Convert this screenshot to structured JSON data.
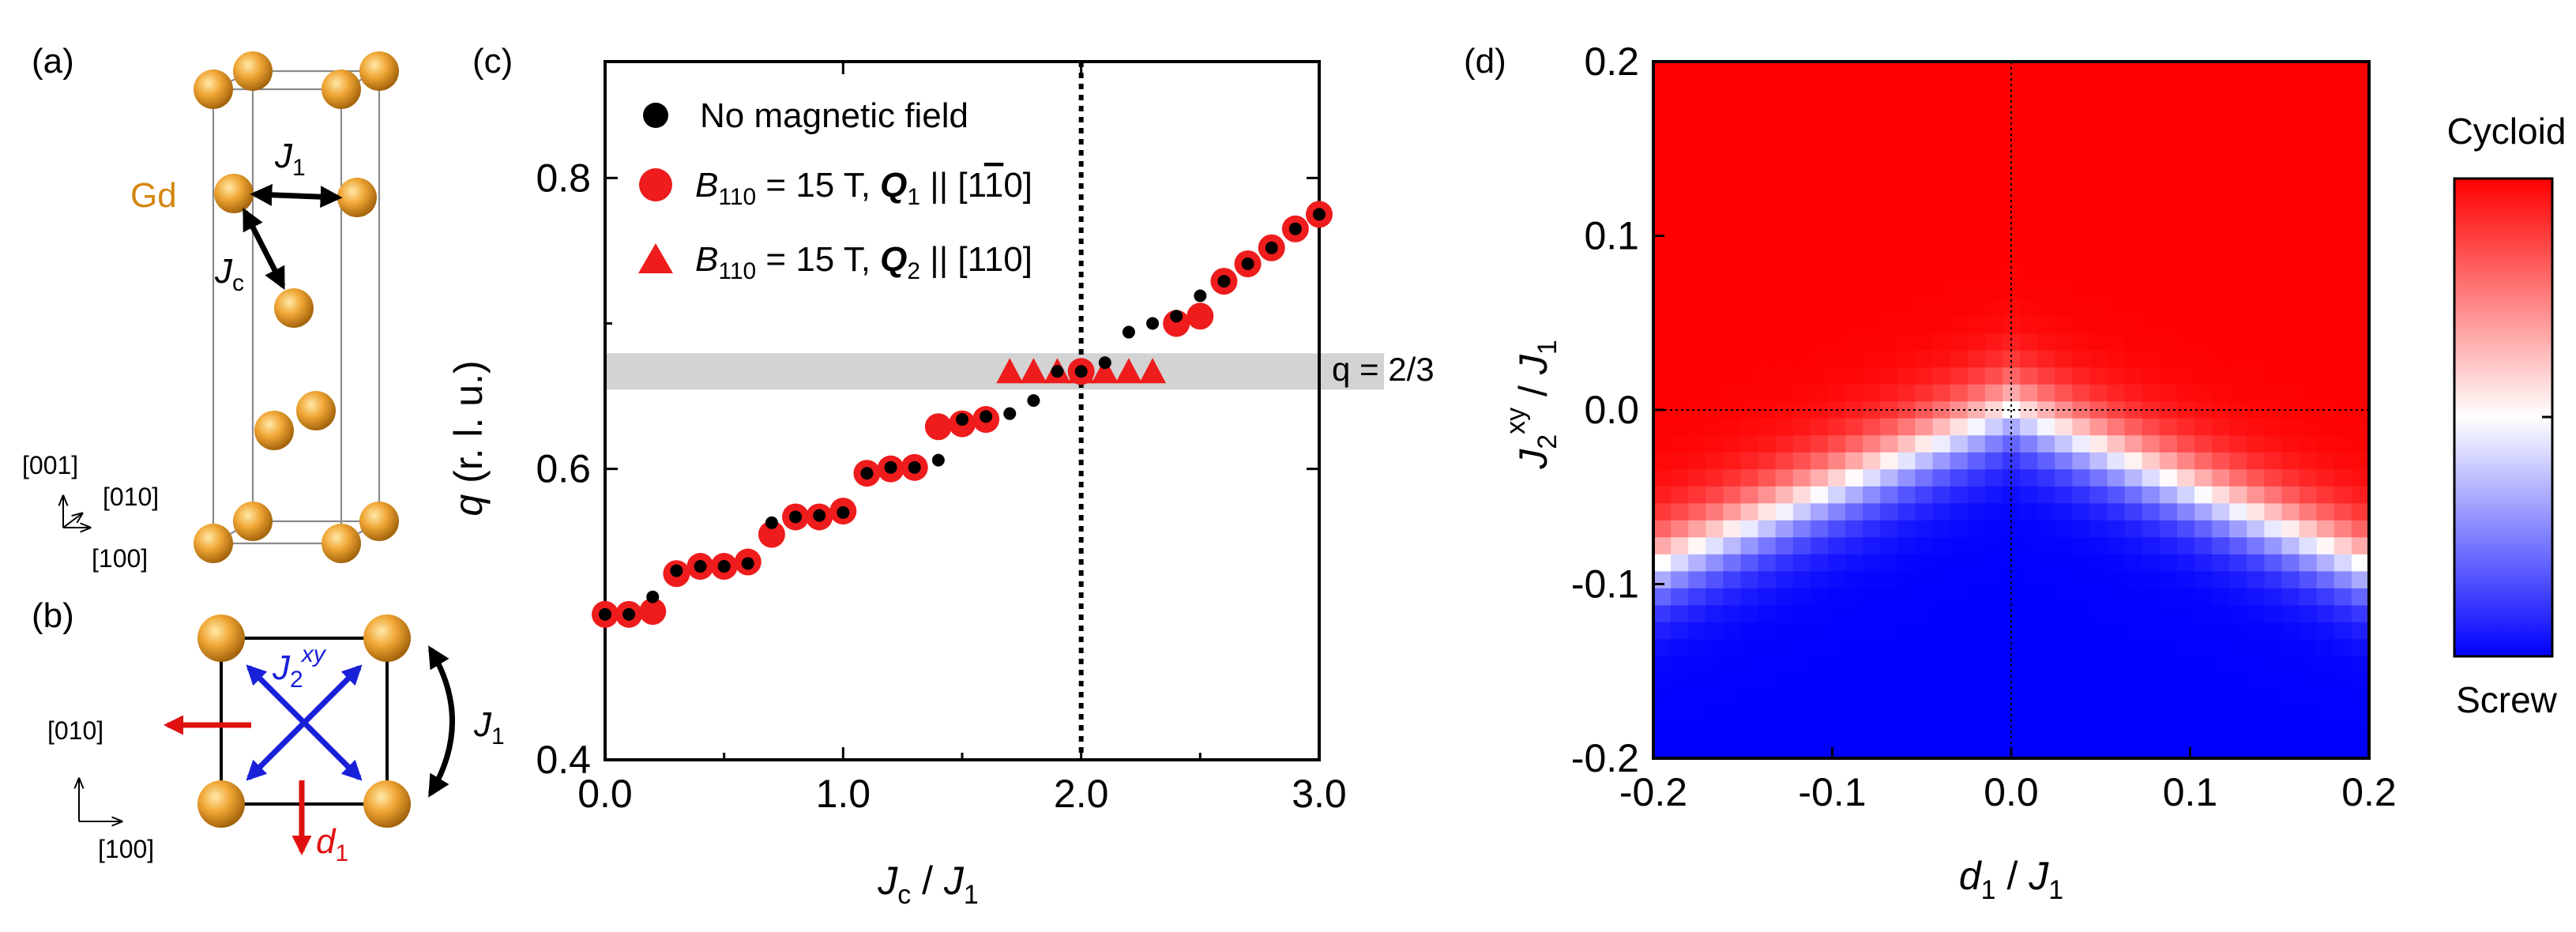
{
  "panel_labels": {
    "a": "(a)",
    "b": "(b)",
    "c": "(c)",
    "d": "(d)"
  },
  "panel_a": {
    "element": "Gd",
    "bond_j1": "J",
    "bond_j1_sub": "1",
    "bond_jc": "J",
    "bond_jc_sub": "c",
    "axis_001": "[001]",
    "axis_010": "[010]",
    "axis_100": "[100]"
  },
  "panel_b": {
    "j2": "J",
    "j2_sub": "2",
    "j2_sup": "xy",
    "j1": "J",
    "j1_sub": "1",
    "d1": "d",
    "d1_sub": "1",
    "axis_010": "[010]",
    "axis_100": "[100]"
  },
  "legend": {
    "items": [
      {
        "marker": "circle-black",
        "text": "No magnetic field"
      },
      {
        "marker": "circle-red",
        "pre": "B",
        "pre_sub": "110",
        "mid": " = 15 T, ",
        "q": "Q",
        "q_sub": "1",
        "post_a": " || [1",
        "overbar": "1",
        "post_b": "0]"
      },
      {
        "marker": "triangle-red",
        "pre": "B",
        "pre_sub": "110",
        "mid": " = 15 T, ",
        "q": "Q",
        "q_sub": "2",
        "post_a": " || [110]"
      }
    ]
  },
  "colors": {
    "gd_atom": "#d08a1c",
    "gd_atom_light": "#ffd27a",
    "gd_text": "#d4860e",
    "j2_blue": "#1a20d8",
    "d1_red": "#e01010",
    "marker_red": "#ee1c1c",
    "marker_black": "#000000",
    "band_gray": "#d3d3d3",
    "cmap_red": "#ff0000",
    "cmap_white": "#ffffff",
    "cmap_blue": "#0000ff"
  },
  "chart_data": [
    {
      "type": "scatter",
      "panel": "c",
      "xlabel": "J",
      "xlabel_sub": "c",
      "xlabel_div": " / ",
      "xlabel2": "J",
      "xlabel2_sub": "1",
      "ylabel": "q",
      "ylabel_rest": " (r. l. u.)",
      "xlim": [
        0.0,
        3.0
      ],
      "ylim": [
        0.4,
        0.88
      ],
      "xticks": [
        0.0,
        1.0,
        2.0,
        3.0
      ],
      "xtick_labels": [
        "0.0",
        "1.0",
        "2.0",
        "3.0"
      ],
      "yticks": [
        0.4,
        0.6,
        0.8
      ],
      "ytick_labels": [
        "0.4",
        "0.6",
        "0.8"
      ],
      "vline_x": 2.0,
      "band": {
        "y": 0.667,
        "label": "q = 2/3"
      },
      "series": [
        {
          "name": "No magnetic field",
          "x": [
            0.0,
            0.1,
            0.2,
            0.3,
            0.4,
            0.5,
            0.6,
            0.7,
            0.8,
            0.9,
            1.0,
            1.1,
            1.2,
            1.3,
            1.4,
            1.5,
            1.6,
            1.7,
            1.8,
            1.9,
            2.0,
            2.1,
            2.2,
            2.3,
            2.4,
            2.5,
            2.6,
            2.7,
            2.8,
            2.9,
            3.0
          ],
          "y": [
            0.5,
            0.5,
            0.512,
            0.53,
            0.533,
            0.533,
            0.535,
            0.563,
            0.567,
            0.568,
            0.57,
            0.597,
            0.601,
            0.601,
            0.606,
            0.634,
            0.636,
            0.638,
            0.647,
            0.667,
            0.667,
            0.673,
            0.694,
            0.7,
            0.705,
            0.719,
            0.729,
            0.741,
            0.752,
            0.765,
            0.775
          ]
        },
        {
          "name": "B110 = 15 T, Q1 || [1-10]",
          "x": [
            0.0,
            0.1,
            0.2,
            0.3,
            0.4,
            0.5,
            0.6,
            0.7,
            0.8,
            0.9,
            1.0,
            1.1,
            1.2,
            1.3,
            1.4,
            1.5,
            1.6,
            2.0,
            2.4,
            2.5,
            2.6,
            2.7,
            2.8,
            2.9,
            3.0
          ],
          "y": [
            0.5,
            0.5,
            0.502,
            0.528,
            0.533,
            0.533,
            0.536,
            0.555,
            0.567,
            0.567,
            0.571,
            0.597,
            0.6,
            0.601,
            0.629,
            0.631,
            0.634,
            0.667,
            0.7,
            0.705,
            0.729,
            0.741,
            0.752,
            0.765,
            0.775
          ]
        },
        {
          "name": "B110 = 15 T, Q2 || [110]",
          "x": [
            1.7,
            1.8,
            1.9,
            2.0,
            2.1,
            2.2,
            2.3
          ],
          "y": [
            0.667,
            0.667,
            0.667,
            0.667,
            0.667,
            0.667,
            0.667
          ]
        }
      ]
    },
    {
      "type": "heatmap",
      "panel": "d",
      "xlabel": "d",
      "xlabel_sub": "1",
      "xlabel_div": " / ",
      "xlabel2": "J",
      "xlabel2_sub": "1",
      "ylabel": "J",
      "ylabel_sub": "2",
      "ylabel_sup": "xy",
      "ylabel_div": " / ",
      "ylabel2": "J",
      "ylabel2_sub": "1",
      "xlim": [
        -0.2,
        0.2
      ],
      "ylim": [
        -0.2,
        0.2
      ],
      "xticks": [
        -0.2,
        -0.1,
        0.0,
        0.1,
        0.2
      ],
      "xtick_labels": [
        "-0.2",
        "-0.1",
        "0.0",
        "0.1",
        "0.2"
      ],
      "yticks": [
        -0.2,
        -0.1,
        0.0,
        0.1,
        0.2
      ],
      "ytick_labels": [
        "-0.2",
        "-0.1",
        "0.0",
        "0.1",
        "0.2"
      ],
      "grid_n": 41,
      "boundary_slope": 0.45,
      "colorbar": {
        "top": "Cycloid",
        "bottom": "Screw"
      }
    }
  ]
}
